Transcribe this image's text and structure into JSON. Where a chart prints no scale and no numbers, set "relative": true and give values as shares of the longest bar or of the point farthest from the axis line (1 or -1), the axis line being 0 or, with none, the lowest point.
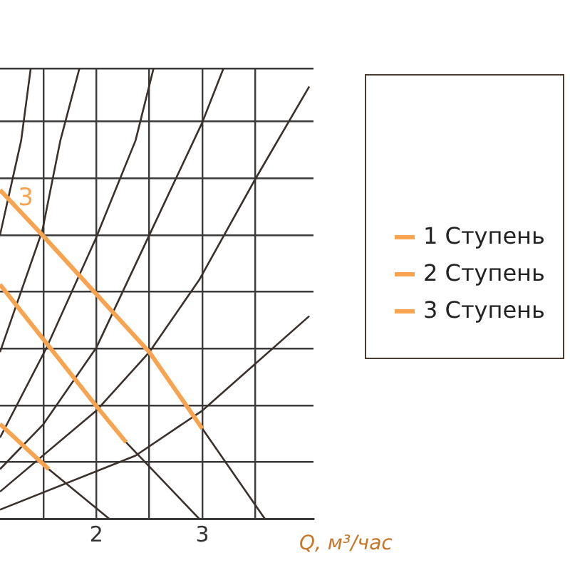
{
  "chart_data": {
    "type": "line",
    "relative": true,
    "xlabel": "Q, м³/час",
    "xlim": [
      1.09,
      4.05
    ],
    "xticks": [
      {
        "value": 1.5,
        "label": null
      },
      2,
      {
        "value": 2.5,
        "label": null
      },
      3,
      {
        "value": 3.5,
        "label": null
      }
    ],
    "grid": true,
    "legend": "right",
    "marker": "none",
    "tick_labels": "x",
    "annotations": [
      "3"
    ],
    "series": [
      {
        "color": "#3a302c",
        "x": [
          1.09,
          1.29,
          1.38
        ],
        "values": [
          0.63,
          0.84,
          1
        ]
      },
      {
        "color": "#3a302c",
        "x": [
          1.09,
          1.49,
          1.66,
          1.84
        ],
        "values": [
          0.37,
          0.64,
          0.84,
          1
        ]
      },
      {
        "color": "#3a302c",
        "x": [
          1.09,
          1.53,
          1.99,
          2.37,
          2.54
        ],
        "values": [
          0.18,
          0.38,
          0.62,
          0.84,
          1
        ]
      },
      {
        "color": "#3a302c",
        "x": [
          1.09,
          1.5,
          2.0,
          2.5,
          3.0,
          3.2
        ],
        "values": [
          0.11,
          0.21,
          0.38,
          0.63,
          0.88,
          1
        ]
      },
      {
        "color": "#3a302c",
        "x": [
          1.09,
          2.0,
          2.5,
          2.97,
          3.49,
          4.01
        ],
        "values": [
          0.06,
          0.24,
          0.37,
          0.53,
          0.75,
          0.96
        ]
      },
      {
        "color": "#3a302c",
        "x": [
          1.09,
          2.37,
          3.0,
          4.01
        ],
        "values": [
          0.02,
          0.14,
          0.24,
          0.45
        ]
      },
      {
        "color": "#3a302c",
        "x": [
          3.0,
          3.59
        ],
        "values": [
          0.2,
          0
        ]
      },
      {
        "color": "#3a302c",
        "x": [
          2.28,
          2.97
        ],
        "values": [
          0.17,
          0
        ]
      },
      {
        "color": "#3a302c",
        "x": [
          1.55,
          2.12
        ],
        "values": [
          0.11,
          0
        ]
      },
      {
        "name": "1 Ступень",
        "color": "#f7a34f",
        "x": [
          1.09,
          1.55
        ],
        "values": [
          0.21,
          0.11
        ]
      },
      {
        "name": "2 Ступень",
        "color": "#f7a34f",
        "x": [
          1.09,
          2.0,
          2.28
        ],
        "values": [
          0.52,
          0.25,
          0.17
        ]
      },
      {
        "name": "3 Ступень",
        "color": "#f7a34f",
        "x": [
          1.09,
          1.49,
          2.5,
          3.0
        ],
        "values": [
          0.73,
          0.63,
          0.37,
          0.2
        ]
      }
    ]
  }
}
